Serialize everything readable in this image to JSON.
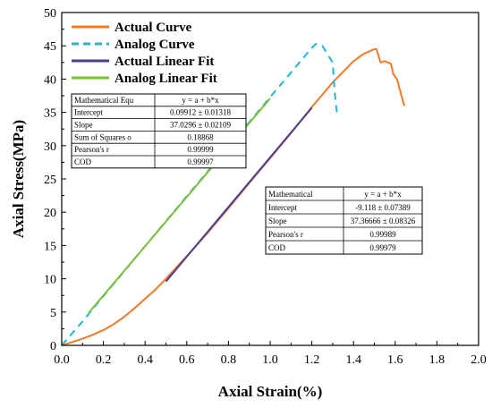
{
  "chart_data": {
    "type": "line",
    "xlabel": "Axial Strain(%)",
    "ylabel": "Axial Stress(MPa)",
    "xlim": [
      0,
      2.0
    ],
    "ylim": [
      0,
      50
    ],
    "x_ticks": [
      "0.0",
      "0.2",
      "0.4",
      "0.6",
      "0.8",
      "1.0",
      "1.2",
      "1.4",
      "1.6",
      "1.8",
      "2.0"
    ],
    "y_ticks": [
      "0",
      "5",
      "10",
      "15",
      "20",
      "25",
      "30",
      "35",
      "40",
      "45",
      "50"
    ],
    "grid": false,
    "legend_position": "top-center",
    "series": [
      {
        "name": "Actual Curve",
        "color": "#f5792a",
        "dash": "solid",
        "x": [
          0,
          0.05,
          0.1,
          0.15,
          0.2,
          0.25,
          0.3,
          0.35,
          0.4,
          0.45,
          0.5,
          0.6,
          0.7,
          0.8,
          0.9,
          1.0,
          1.1,
          1.2,
          1.3,
          1.35,
          1.4,
          1.45,
          1.5,
          1.51,
          1.53,
          1.55,
          1.58,
          1.59,
          1.61,
          1.62,
          1.64,
          1.645
        ],
        "y": [
          0,
          0.5,
          1.0,
          1.6,
          2.3,
          3.2,
          4.3,
          5.6,
          7.0,
          8.4,
          10.0,
          13.4,
          16.9,
          20.6,
          24.4,
          28.1,
          31.9,
          35.8,
          39.5,
          41.1,
          42.7,
          43.8,
          44.5,
          44.5,
          42.5,
          42.7,
          42.3,
          40.8,
          39.9,
          38.6,
          36.4,
          36.0
        ]
      },
      {
        "name": "Analog Curve",
        "color": "#1fb7d4",
        "dash": "dashed",
        "x": [
          0,
          0.1,
          0.2,
          0.4,
          0.6,
          0.8,
          1.0,
          1.1,
          1.2,
          1.22,
          1.25,
          1.28,
          1.3,
          1.31,
          1.32
        ],
        "y": [
          0,
          3.6,
          7.4,
          14.9,
          22.4,
          29.8,
          37.3,
          41.0,
          44.7,
          45.3,
          45.0,
          43.5,
          42.5,
          38.0,
          35.0
        ]
      },
      {
        "name": "Actual Linear Fit",
        "color": "#4b3d8f",
        "dash": "solid",
        "x": [
          0.5,
          1.2
        ],
        "y": [
          9.6,
          35.7
        ]
      },
      {
        "name": "Analog Linear Fit",
        "color": "#7cbf3a",
        "dash": "solid",
        "x": [
          0.13,
          1.0
        ],
        "y": [
          4.9,
          37.1
        ]
      }
    ],
    "fit_tables": [
      {
        "rows": [
          [
            "Mathematical Equ",
            "y = a + b*x"
          ],
          [
            "Intercept",
            "0.09912 ± 0.01318"
          ],
          [
            "Slope",
            "37.0296 ± 0.02109"
          ],
          [
            "Sum of Squares o",
            "0.18868"
          ],
          [
            "Pearson's r",
            "0.99999"
          ],
          [
            "COD",
            "0.99997"
          ]
        ]
      },
      {
        "rows": [
          [
            "Mathematical",
            "y = a + b*x"
          ],
          [
            "Intercept",
            "-9.118 ± 0.07389"
          ],
          [
            "Slope",
            "37.36666 ± 0.08326"
          ],
          [
            "Pearson's r",
            "0.99989"
          ],
          [
            "COD",
            "0.99979"
          ]
        ]
      }
    ]
  }
}
